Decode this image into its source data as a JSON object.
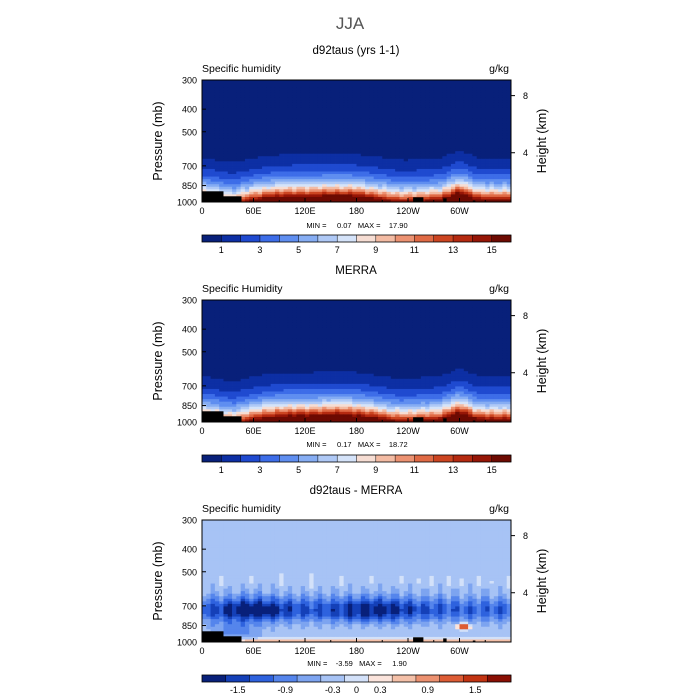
{
  "page_title": "JJA",
  "chart_data": [
    {
      "type": "heatmap",
      "title": "d92taus (yrs 1-1)",
      "subtitle_left": "Specific humidity",
      "units": "g/kg",
      "ylabel": "Pressure (mb)",
      "ylabel_right": "Height (km)",
      "x_ticks": [
        "0",
        "60E",
        "120E",
        "180",
        "120W",
        "60W"
      ],
      "y_ticks": [
        "300",
        "400",
        "500",
        "700",
        "850",
        "1000"
      ],
      "height_ticks": [
        "8",
        "4"
      ],
      "stats": "MIN =     0.07   MAX =    17.90",
      "colorbar_labels": [
        "1",
        "3",
        "5",
        "7",
        "9",
        "11",
        "13",
        "15"
      ],
      "surface_levels": [
        900,
        945,
        959,
        955,
        965,
        985
      ],
      "surface_lon_centers": [
        8,
        28,
        252,
        283,
        317
      ]
    },
    {
      "type": "heatmap",
      "title": "MERRA",
      "subtitle_left": "Specific Humidity",
      "units": "g/kg",
      "ylabel": "Pressure (mb)",
      "ylabel_right": "Height (km)",
      "x_ticks": [
        "0",
        "60E",
        "120E",
        "180",
        "120W",
        "60W"
      ],
      "y_ticks": [
        "300",
        "400",
        "500",
        "700",
        "850",
        "1000"
      ],
      "height_ticks": [
        "8",
        "4"
      ],
      "stats": "MIN =     0.17   MAX =    18.72",
      "colorbar_labels": [
        "1",
        "3",
        "5",
        "7",
        "9",
        "11",
        "13",
        "15"
      ]
    },
    {
      "type": "heatmap",
      "title": "d92taus - MERRA",
      "subtitle_left": "Specific humidity",
      "units": "g/kg",
      "ylabel": "Pressure (mb)",
      "ylabel_right": "Height (km)",
      "x_ticks": [
        "0",
        "60E",
        "120E",
        "180",
        "120W",
        "60W"
      ],
      "y_ticks": [
        "300",
        "400",
        "500",
        "700",
        "850",
        "1000"
      ],
      "height_ticks": [
        "8",
        "4"
      ],
      "stats": "MIN =    -3.59   MAX =     1.90",
      "colorbar_labels": [
        "-1.5",
        "-0.9",
        "-0.3",
        "0",
        "0.3",
        "0.9",
        "1.5"
      ]
    }
  ],
  "colors": {
    "humidity_scale": [
      "#08207a",
      "#0d2fa4",
      "#1f4ad0",
      "#3d6de8",
      "#5f8ef0",
      "#86adf3",
      "#afc9f6",
      "#d5e3f9",
      "#f6ddd3",
      "#f3bba3",
      "#ec9272",
      "#e06a45",
      "#cc4521",
      "#b52a10",
      "#961607",
      "#6d0a02"
    ],
    "diff_scale": [
      "#08207a",
      "#1440b8",
      "#2e62de",
      "#5585ec",
      "#7da4f0",
      "#a7c3f5",
      "#d3e1f9",
      "#fbe4dc",
      "#f4c0a8",
      "#ec9170",
      "#dd5c35",
      "#c23412",
      "#8a0f03"
    ]
  }
}
